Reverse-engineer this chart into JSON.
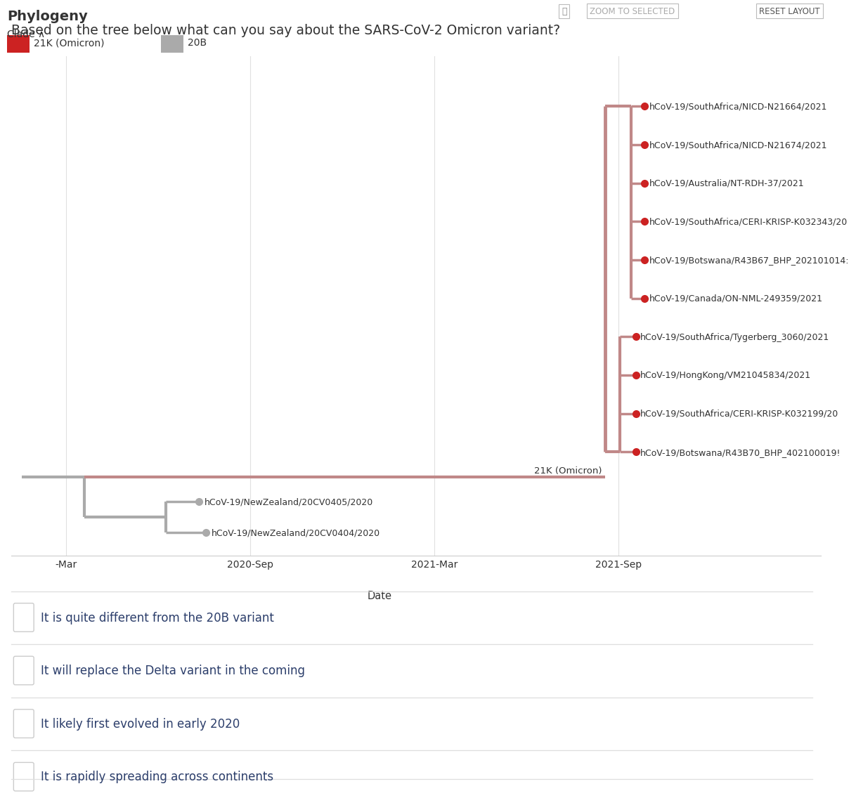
{
  "question": "Based on the tree below what can you say about the SARS-CoV-2 Omicron variant?",
  "phylogeny_title": "Phylogeny",
  "clade_label": "Clade ∧",
  "legend_omicron": "21K (Omicron)",
  "legend_20b": "20B",
  "omicron_color": "#cc2222",
  "omicron_branch_color": "#c08888",
  "b20_color": "#aaaaaa",
  "b20_branch_color": "#aaaaaa",
  "root_color": "#aaaaaa",
  "omicron_taxa": [
    "hCoV-19/SouthAfrica/NICD-N21664/2021",
    "hCoV-19/SouthAfrica/NICD-N21674/2021",
    "hCoV-19/Australia/NT-RDH-37/2021",
    "hCoV-19/SouthAfrica/CERI-KRISP-K032343/20",
    "hCoV-19/Botswana/R43B67_BHP_202101014:",
    "hCoV-19/Canada/ON-NML-249359/2021",
    "hCoV-19/SouthAfrica/Tygerberg_3060/2021",
    "hCoV-19/HongKong/VM21045834/2021",
    "hCoV-19/SouthAfrica/CERI-KRISP-K032199/20",
    "hCoV-19/Botswana/R43B70_BHP_402100019!"
  ],
  "b20_taxa": [
    "hCoV-19/NewZealand/20CV0405/2020",
    "hCoV-19/NewZealand/20CV0404/2020"
  ],
  "omicron_label": "21K (Omicron)",
  "x_tick_positions": [
    0.0,
    0.5,
    1.0,
    1.5
  ],
  "x_tick_labels": [
    "-Mar",
    "2020-Sep",
    "2021-Mar",
    "2021-Sep"
  ],
  "x_label": "Date",
  "zoom_button": "ZOOM TO SELECTED",
  "reset_button": "RESET LAYOUT",
  "options": [
    "It is quite different from the 20B variant",
    "It will replace the Delta variant in the coming",
    "It likely first evolved in early 2020",
    "It is rapidly spreading across continents"
  ],
  "bg_color": "#ffffff",
  "text_color": "#333333",
  "option_text_color": "#2c3e6b",
  "grid_color": "#e0e0e0",
  "lw_main": 3.0,
  "lw_branch": 2.5,
  "dot_size_omicron": 7,
  "dot_size_b20": 7
}
